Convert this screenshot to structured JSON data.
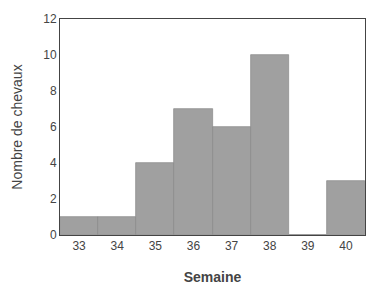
{
  "chart_data": {
    "type": "bar",
    "x": [
      33,
      34,
      35,
      36,
      37,
      38,
      39,
      40
    ],
    "values": [
      1,
      1,
      4,
      7,
      6,
      10,
      0,
      3
    ],
    "color": "#a0a0a0",
    "xlabel": "Semaine",
    "ylabel": "Nombre de chevaux",
    "xlim": [
      32.5,
      40.5
    ],
    "xticks": [
      33,
      34,
      35,
      36,
      37,
      38,
      39,
      40
    ],
    "ylim": [
      0,
      12
    ],
    "yticks": [
      0,
      2,
      4,
      6,
      8,
      10,
      12
    ],
    "grid": false
  }
}
